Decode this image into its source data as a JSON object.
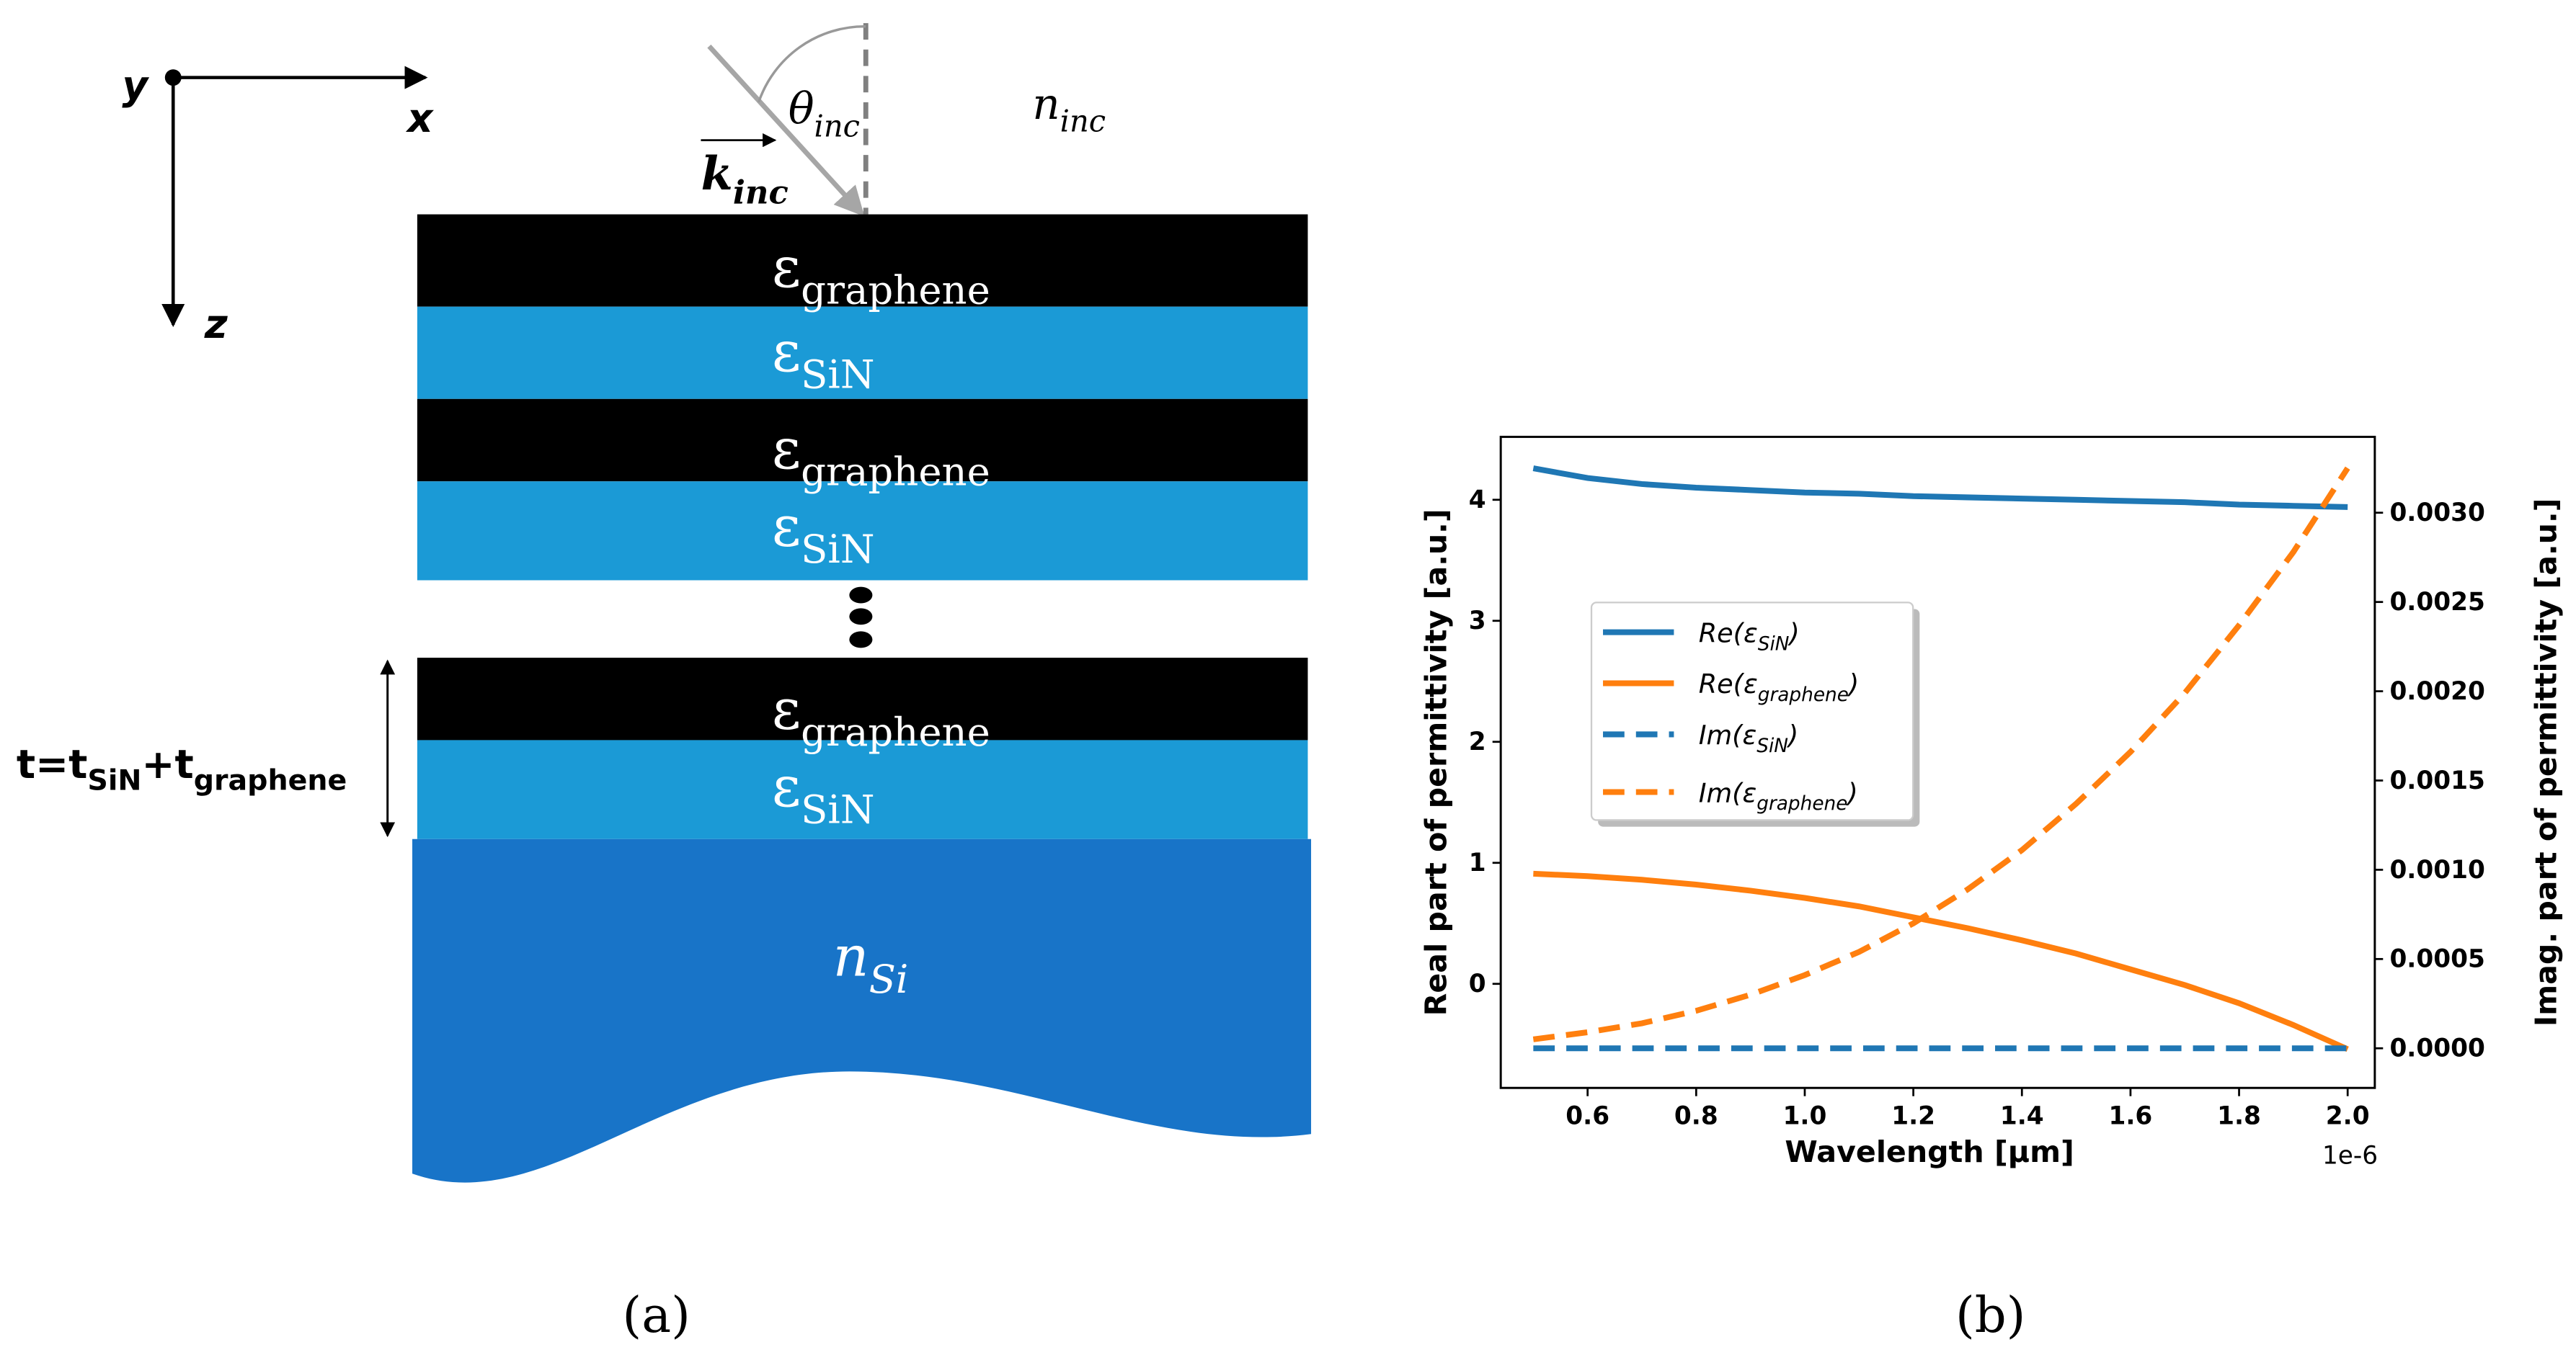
{
  "diagram": {
    "axes": {
      "y": "y",
      "x": "x",
      "z": "z"
    },
    "incidence": {
      "angle": {
        "symbol": "θ",
        "sub": "inc"
      },
      "wavevector": {
        "symbol": "k",
        "sub": "inc"
      },
      "medium": {
        "symbol": "n",
        "sub": "inc"
      }
    },
    "layers": [
      {
        "symbol": "ε",
        "sub": "graphene"
      },
      {
        "symbol": "ε",
        "sub": "SiN"
      },
      {
        "symbol": "ε",
        "sub": "graphene"
      },
      {
        "symbol": "ε",
        "sub": "SiN"
      },
      {
        "symbol": "ε",
        "sub": "graphene"
      },
      {
        "symbol": "ε",
        "sub": "SiN"
      }
    ],
    "thickness": [
      "t=t",
      "SiN",
      "+t",
      "graphene"
    ],
    "substrate": {
      "symbol": "n",
      "sub": "Si"
    }
  },
  "captions": [
    "(a)",
    "(b)"
  ],
  "chart_data": {
    "type": "line",
    "xlabel": "Wavelength [μm]",
    "xoffset_label": "1e-6",
    "ylabel": "Real part of permittivity [a.u.]",
    "y2label": "Imag. part of permittivity [a.u.]",
    "x": [
      5e-07,
      6e-07,
      7e-07,
      8e-07,
      9e-07,
      1e-06,
      1.1e-06,
      1.2e-06,
      1.3e-06,
      1.4e-06,
      1.5e-06,
      1.6e-06,
      1.7e-06,
      1.8e-06,
      1.9e-06,
      2e-06
    ],
    "xlim": [
      4.4e-07,
      2.05e-06
    ],
    "xticks": [
      {
        "value": 6e-07,
        "label": "0.6"
      },
      {
        "value": 8e-07,
        "label": "0.8"
      },
      {
        "value": 1e-06,
        "label": "1.0"
      },
      {
        "value": 1.2e-06,
        "label": "1.2"
      },
      {
        "value": 1.4e-06,
        "label": "1.4"
      },
      {
        "value": 1.6e-06,
        "label": "1.6"
      },
      {
        "value": 1.8e-06,
        "label": "1.8"
      },
      {
        "value": 2e-06,
        "label": "2.0"
      }
    ],
    "ylim": [
      -0.86,
      4.52
    ],
    "yticks": [
      0,
      1,
      2,
      3,
      4
    ],
    "y2lim": [
      -0.000222,
      0.003425
    ],
    "y2ticks": [
      {
        "value": 0,
        "label": "0.0000"
      },
      {
        "value": 0.0005,
        "label": "0.0005"
      },
      {
        "value": 0.001,
        "label": "0.0010"
      },
      {
        "value": 0.0015,
        "label": "0.0015"
      },
      {
        "value": 0.002,
        "label": "0.0020"
      },
      {
        "value": 0.0025,
        "label": "0.0025"
      },
      {
        "value": 0.003,
        "label": "0.0030"
      }
    ],
    "legend": "center left",
    "series": [
      {
        "name": [
          "Re(ε",
          "SiN",
          ")"
        ],
        "color": "#1f77b4",
        "linestyle": "solid",
        "values": [
          4.26,
          4.18,
          4.13,
          4.1,
          4.08,
          4.06,
          4.05,
          4.03,
          4.02,
          4.01,
          4.0,
          3.99,
          3.98,
          3.96,
          3.95,
          3.94
        ]
      },
      {
        "name": [
          "Re(ε",
          "graphene",
          ")"
        ],
        "color": "#ff7f0e",
        "linestyle": "solid",
        "values": [
          0.91,
          0.89,
          0.86,
          0.82,
          0.77,
          0.71,
          0.64,
          0.55,
          0.46,
          0.36,
          0.25,
          0.12,
          -0.01,
          -0.16,
          -0.34,
          -0.54
        ]
      },
      {
        "name": [
          "Im(ε",
          "SiN",
          ")"
        ],
        "color": "#1f77b4",
        "linestyle": "dashed",
        "axis": "y2",
        "values": [
          0,
          0,
          0,
          0,
          0,
          0,
          0,
          0,
          0,
          0,
          0,
          0,
          0,
          0,
          0,
          0
        ]
      },
      {
        "name": [
          "Im(ε",
          "graphene",
          ")"
        ],
        "color": "#ff7f0e",
        "linestyle": "dashed",
        "axis": "y2",
        "values": [
          5e-05,
          9e-05,
          0.00014,
          0.00021,
          0.0003,
          0.00041,
          0.00054,
          0.0007,
          0.00089,
          0.00111,
          0.00137,
          0.00166,
          0.00199,
          0.00237,
          0.00278,
          0.00325
        ]
      }
    ]
  }
}
